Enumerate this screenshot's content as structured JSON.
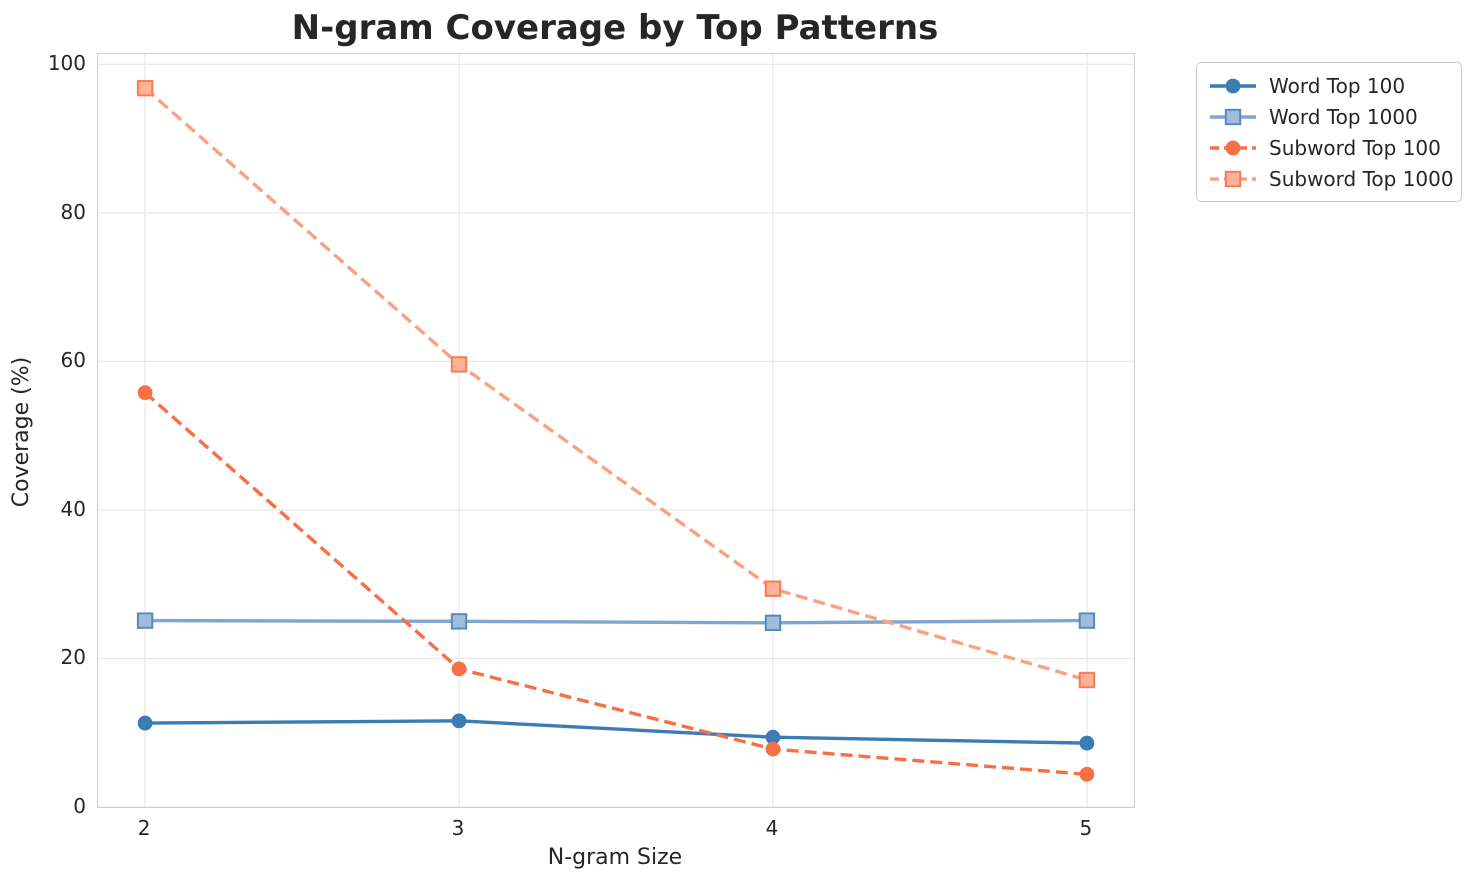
{
  "chart_data": {
    "type": "line",
    "title": "N-gram Coverage by Top Patterns",
    "xlabel": "N-gram Size",
    "ylabel": "Coverage (%)",
    "x": [
      2,
      3,
      4,
      5
    ],
    "x_ticks": [
      "2",
      "3",
      "4",
      "5"
    ],
    "y_tick_values": [
      0,
      20,
      40,
      60,
      80,
      100
    ],
    "y_ticks": [
      "0",
      "20",
      "40",
      "60",
      "80",
      "100"
    ],
    "xlim": [
      1.85,
      5.15
    ],
    "ylim": [
      0,
      101.4
    ],
    "grid": true,
    "legend_position": "outside-upper-right",
    "series": [
      {
        "name": "Word Top 100",
        "values": [
          11.3,
          11.6,
          9.4,
          8.6
        ],
        "color": "#3B7CB4",
        "marker": "circle",
        "line_style": "solid"
      },
      {
        "name": "Word Top 1000",
        "values": [
          25.1,
          25.0,
          24.8,
          25.1
        ],
        "color": "#7FA7CD",
        "marker": "square",
        "line_style": "solid",
        "marker_fill": "#9FBDDB",
        "marker_edge": "#548BBE"
      },
      {
        "name": "Subword Top 100",
        "values": [
          55.8,
          18.6,
          7.8,
          4.4
        ],
        "color": "#F96F45",
        "marker": "circle",
        "line_style": "dashed"
      },
      {
        "name": "Subword Top 1000",
        "values": [
          96.8,
          59.6,
          29.4,
          17.1
        ],
        "color": "#FBA183",
        "marker": "square",
        "line_style": "dashed",
        "marker_fill": "#FCB296",
        "marker_edge": "#F87D54"
      }
    ],
    "colors": {
      "grid": "#e9e9e9",
      "spine": "#cfcfcf",
      "text": "#262626",
      "background": "#ffffff"
    }
  }
}
